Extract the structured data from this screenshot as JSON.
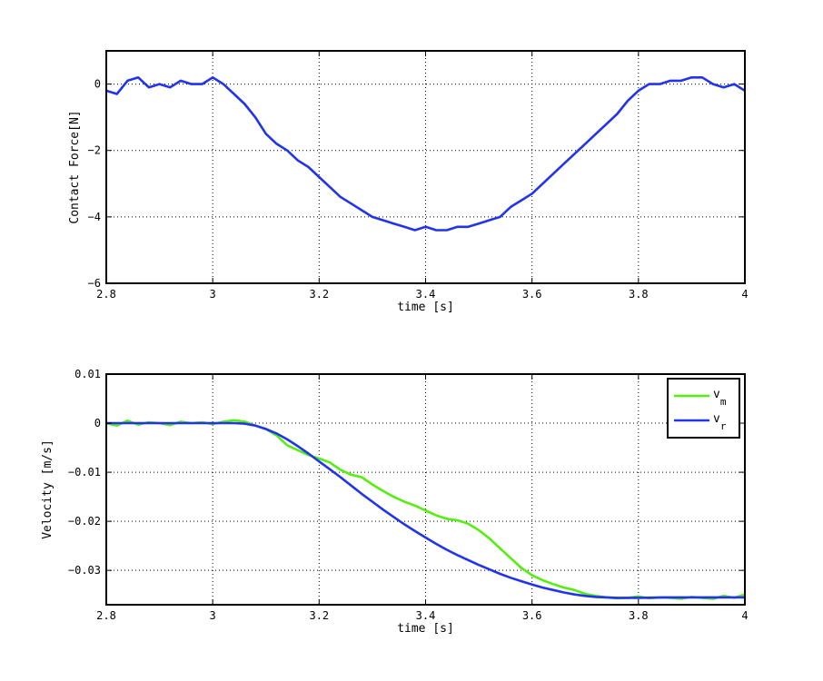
{
  "chart_data": [
    {
      "type": "line",
      "title": "",
      "xlabel": "time [s]",
      "ylabel": "Contact Force[N]",
      "xlim": [
        2.8,
        4.0
      ],
      "ylim": [
        -6,
        1
      ],
      "xticks": [
        2.8,
        3.0,
        3.2,
        3.4,
        3.6,
        3.8,
        4.0
      ],
      "xtick_labels": [
        "2.8",
        "3",
        "3.2",
        "3.4",
        "3.6",
        "3.8",
        "4"
      ],
      "yticks": [
        -6,
        -4,
        -2,
        0
      ],
      "ytick_labels": [
        "−6",
        "−4",
        "−2",
        "0"
      ],
      "grid": true,
      "series": [
        {
          "color": "#2233ee",
          "x": [
            2.8,
            2.82,
            2.84,
            2.86,
            2.88,
            2.9,
            2.92,
            2.94,
            2.96,
            2.98,
            3.0,
            3.02,
            3.04,
            3.06,
            3.08,
            3.1,
            3.12,
            3.14,
            3.16,
            3.18,
            3.2,
            3.22,
            3.24,
            3.26,
            3.28,
            3.3,
            3.32,
            3.34,
            3.36,
            3.38,
            3.4,
            3.42,
            3.44,
            3.46,
            3.48,
            3.5,
            3.52,
            3.54,
            3.56,
            3.58,
            3.6,
            3.62,
            3.64,
            3.66,
            3.68,
            3.7,
            3.72,
            3.74,
            3.76,
            3.78,
            3.8,
            3.82,
            3.84,
            3.86,
            3.88,
            3.9,
            3.92,
            3.94,
            3.96,
            3.98,
            4.0
          ],
          "y": [
            -0.2,
            -0.3,
            0.1,
            0.2,
            -0.1,
            0.0,
            -0.1,
            0.1,
            0.0,
            0.0,
            0.2,
            0.0,
            -0.3,
            -0.6,
            -1.0,
            -1.5,
            -1.8,
            -2.0,
            -2.3,
            -2.5,
            -2.8,
            -3.1,
            -3.4,
            -3.6,
            -3.8,
            -4.0,
            -4.1,
            -4.2,
            -4.3,
            -4.4,
            -4.3,
            -4.4,
            -4.4,
            -4.3,
            -4.3,
            -4.2,
            -4.1,
            -4.0,
            -3.7,
            -3.5,
            -3.3,
            -3.0,
            -2.7,
            -2.4,
            -2.1,
            -1.8,
            -1.5,
            -1.2,
            -0.9,
            -0.5,
            -0.2,
            0.0,
            0.0,
            0.1,
            0.1,
            0.2,
            0.2,
            0.0,
            -0.1,
            0.0,
            -0.2
          ]
        }
      ]
    },
    {
      "type": "line",
      "title": "",
      "xlabel": "time [s]",
      "ylabel": "Velocity [m/s]",
      "xlim": [
        2.8,
        4.0
      ],
      "ylim": [
        -0.037,
        0.01
      ],
      "xticks": [
        2.8,
        3.0,
        3.2,
        3.4,
        3.6,
        3.8,
        4.0
      ],
      "xtick_labels": [
        "2.8",
        "3",
        "3.2",
        "3.4",
        "3.6",
        "3.8",
        "4"
      ],
      "yticks": [
        -0.03,
        -0.02,
        -0.01,
        0,
        0.01
      ],
      "ytick_labels": [
        "−0.03",
        "−0.02",
        "−0.01",
        "0",
        "0.01"
      ],
      "grid": true,
      "legend": {
        "position": "top-right",
        "entries": [
          {
            "base": "v",
            "sub": "m",
            "color": "#55ee11"
          },
          {
            "base": "v",
            "sub": "r",
            "color": "#2233ee"
          }
        ]
      },
      "series": [
        {
          "color": "#55ee11",
          "x": [
            2.8,
            2.82,
            2.84,
            2.86,
            2.88,
            2.9,
            2.92,
            2.94,
            2.96,
            2.98,
            3.0,
            3.02,
            3.04,
            3.06,
            3.08,
            3.1,
            3.12,
            3.14,
            3.16,
            3.18,
            3.2,
            3.22,
            3.24,
            3.26,
            3.28,
            3.3,
            3.32,
            3.34,
            3.36,
            3.38,
            3.4,
            3.42,
            3.44,
            3.46,
            3.48,
            3.5,
            3.52,
            3.54,
            3.56,
            3.58,
            3.6,
            3.62,
            3.64,
            3.66,
            3.68,
            3.7,
            3.72,
            3.74,
            3.76,
            3.78,
            3.8,
            3.82,
            3.84,
            3.86,
            3.88,
            3.9,
            3.92,
            3.94,
            3.96,
            3.98,
            4.0
          ],
          "y": [
            0.0,
            -0.0005,
            0.0005,
            -0.0003,
            0.0002,
            0.0,
            -0.0004,
            0.0003,
            0.0,
            0.0002,
            -0.0002,
            0.0003,
            0.0006,
            0.0003,
            -0.0005,
            -0.0012,
            -0.0025,
            -0.0045,
            -0.0055,
            -0.0065,
            -0.0072,
            -0.008,
            -0.0095,
            -0.0105,
            -0.011,
            -0.0125,
            -0.0138,
            -0.015,
            -0.016,
            -0.0168,
            -0.0178,
            -0.0188,
            -0.0195,
            -0.0198,
            -0.0205,
            -0.0218,
            -0.0235,
            -0.0255,
            -0.0275,
            -0.0295,
            -0.031,
            -0.032,
            -0.0328,
            -0.0335,
            -0.034,
            -0.0348,
            -0.0352,
            -0.0355,
            -0.0357,
            -0.0356,
            -0.0353,
            -0.0357,
            -0.0355,
            -0.0356,
            -0.0358,
            -0.0354,
            -0.0356,
            -0.0358,
            -0.0352,
            -0.0356,
            -0.0349
          ]
        },
        {
          "color": "#2233ee",
          "x": [
            2.8,
            2.85,
            2.9,
            2.95,
            3.0,
            3.02,
            3.04,
            3.06,
            3.08,
            3.1,
            3.12,
            3.14,
            3.16,
            3.18,
            3.2,
            3.22,
            3.24,
            3.26,
            3.28,
            3.3,
            3.32,
            3.34,
            3.36,
            3.38,
            3.4,
            3.42,
            3.44,
            3.46,
            3.48,
            3.5,
            3.52,
            3.54,
            3.56,
            3.58,
            3.6,
            3.62,
            3.64,
            3.66,
            3.68,
            3.7,
            3.72,
            3.74,
            3.76,
            3.8,
            3.85,
            3.9,
            3.95,
            4.0
          ],
          "y": [
            0.0,
            0.0,
            0.0,
            0.0,
            0.0,
            0.0,
            0.0,
            -0.0001,
            -0.0005,
            -0.0012,
            -0.0021,
            -0.0033,
            -0.0047,
            -0.0062,
            -0.0078,
            -0.0094,
            -0.011,
            -0.0127,
            -0.0144,
            -0.016,
            -0.0176,
            -0.0191,
            -0.0206,
            -0.022,
            -0.0233,
            -0.0246,
            -0.0258,
            -0.0269,
            -0.0279,
            -0.0289,
            -0.0298,
            -0.0307,
            -0.0315,
            -0.0322,
            -0.0329,
            -0.0335,
            -0.034,
            -0.0345,
            -0.0349,
            -0.0352,
            -0.0354,
            -0.0355,
            -0.0356,
            -0.0356,
            -0.0355,
            -0.0355,
            -0.0355,
            -0.0355
          ]
        }
      ]
    }
  ]
}
